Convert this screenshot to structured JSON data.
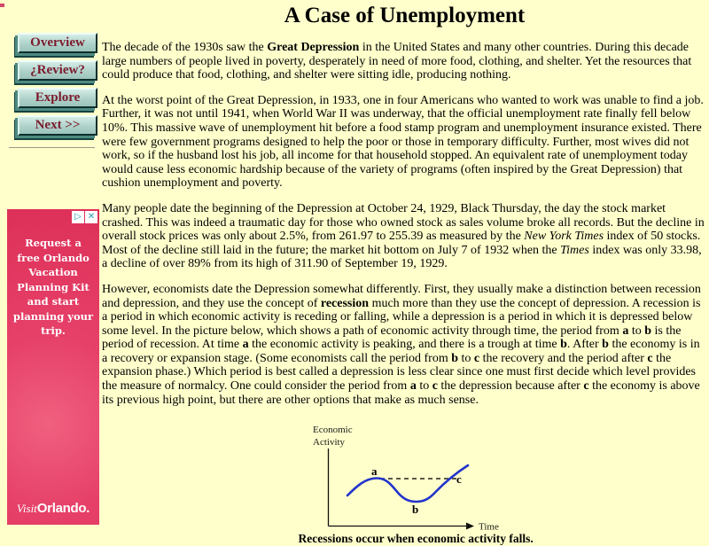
{
  "page": {
    "title": "A Case of Unemployment"
  },
  "colors": {
    "page_background": "#FFFFCC",
    "ad_pink": "#E64069",
    "button_face": "#AED2CA",
    "button_text": "#7B1B2D",
    "curve_blue": "#2233CC"
  },
  "sidebar": {
    "buttons": [
      {
        "label": "Overview"
      },
      {
        "label": "¿Review?"
      },
      {
        "label": "Explore"
      },
      {
        "label": "Next >>"
      }
    ],
    "ad": {
      "text": "Request a free Orlando Vacation Planning Kit and start planning your trip.",
      "logo_script": "Visit",
      "logo_bold": "Orlando.",
      "adchoices_glyph": "▷",
      "close_glyph": "✕"
    }
  },
  "article": {
    "paragraphs": [
      [
        {
          "t": "The decade of the 1930s saw the "
        },
        {
          "t": "Great Depression",
          "b": true
        },
        {
          "t": " in the United States and many other countries. During this decade large numbers of people lived in poverty, desperately in need of more food, clothing, and shelter. Yet the resources that could produce that food, clothing, and shelter were sitting idle, producing nothing."
        }
      ],
      [
        {
          "t": "At the worst point of the Great Depression, in 1933, one in four Americans who wanted to work was unable to find a job. Further, it was not until 1941, when World War II was underway, that the official unemployment rate finally fell below 10%. This massive wave of unemployment hit before a food stamp program and unemployment insurance existed. There were few government programs designed to help the poor or those in temporary difficulty. Further, most wives did not work, so if the husband lost his job, all income for that household stopped. An equivalent rate of unemployment today would cause less economic hardship because of the variety of programs (often inspired by the Great Depression) that cushion unemployment and poverty."
        }
      ],
      [
        {
          "t": "Many people date the beginning of the Depression at October 24, 1929, Black Thursday, the day the stock market crashed. This was indeed a traumatic day for those who owned stock as sales volume broke all records. But the decline in overall stock prices was only about 2.5%, from 261.97 to 255.39 as measured by the "
        },
        {
          "t": "New York Times",
          "i": true
        },
        {
          "t": " index of 50 stocks. Most of the decline still laid in the future; the market hit bottom on July 7 of 1932 when the "
        },
        {
          "t": "Times",
          "i": true
        },
        {
          "t": " index was only 33.98, a decline of over 89% from its high of 311.90 of September 19, 1929."
        }
      ],
      [
        {
          "t": "However, economists date the Depression somewhat differently. First, they usually make a distinction between recession and depression, and they use the concept of "
        },
        {
          "t": "recession",
          "b": true
        },
        {
          "t": " much more than they use the concept of depression. A recession is a period in which economic activity is receding or falling, while a depression is a period in which it is depressed below some level. In the picture below, which shows a path of economic activity through time, the period from "
        },
        {
          "t": "a",
          "b": true
        },
        {
          "t": " to "
        },
        {
          "t": "b",
          "b": true
        },
        {
          "t": " is the period of recession. At time "
        },
        {
          "t": "a",
          "b": true
        },
        {
          "t": " the economic activity is peaking, and there is a trough at time "
        },
        {
          "t": "b",
          "b": true
        },
        {
          "t": ". After "
        },
        {
          "t": "b",
          "b": true
        },
        {
          "t": " the economy is in a recovery or expansion stage. (Some economists call the period from "
        },
        {
          "t": "b",
          "b": true
        },
        {
          "t": " to "
        },
        {
          "t": "c",
          "b": true
        },
        {
          "t": " the recovery and the period after "
        },
        {
          "t": "c",
          "b": true
        },
        {
          "t": " the expansion phase.) Which period is best called a depression is less clear since one must first decide which level provides the measure of normalcy. One could consider the period from "
        },
        {
          "t": "a",
          "b": true
        },
        {
          "t": " to "
        },
        {
          "t": "c",
          "b": true
        },
        {
          "t": " the depression because after "
        },
        {
          "t": "c",
          "b": true
        },
        {
          "t": " the economy is above its previous high point, but there are other options that make as much sense."
        }
      ]
    ]
  },
  "figure": {
    "y_label_line1": "Economic",
    "y_label_line2": "Activity",
    "x_label": "Time",
    "point_a": "a",
    "point_b": "b",
    "point_c": "c",
    "caption": "Recessions occur when economic activity falls."
  },
  "chart_data": {
    "type": "line",
    "title": "",
    "xlabel": "Time",
    "ylabel": "Economic Activity",
    "caption": "Recessions occur when economic activity falls.",
    "axes_quantitative": false,
    "grid": false,
    "series": [
      {
        "name": "economic activity path",
        "color": "#2233CC",
        "points_normalized_xy": [
          [
            0.14,
            0.42
          ],
          [
            0.22,
            0.53
          ],
          [
            0.34,
            0.62
          ],
          [
            0.44,
            0.48
          ],
          [
            0.53,
            0.35
          ],
          [
            0.6,
            0.33
          ],
          [
            0.68,
            0.4
          ],
          [
            0.78,
            0.55
          ],
          [
            0.87,
            0.7
          ],
          [
            0.94,
            0.82
          ]
        ]
      }
    ],
    "annotations": [
      {
        "label": "a",
        "meaning": "peak of economic activity; start of recession"
      },
      {
        "label": "b",
        "meaning": "trough; end of recession"
      },
      {
        "label": "c",
        "meaning": "point where activity regains previous peak level"
      },
      {
        "label": "dashed line",
        "meaning": "horizontal reference at the peak level from a to c"
      }
    ],
    "legend": false
  }
}
